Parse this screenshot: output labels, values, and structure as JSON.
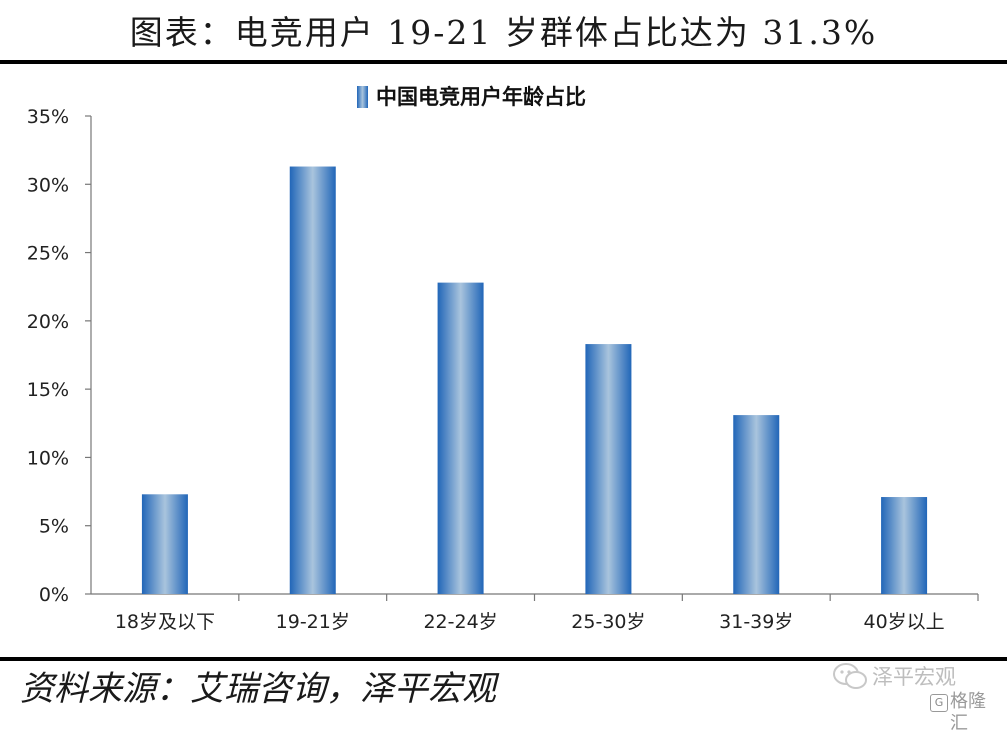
{
  "header": {
    "title": "图表：电竞用户 19-21 岁群体占比达为 31.3%"
  },
  "footer": {
    "source": "资料来源：艾瑞咨询，泽平宏观"
  },
  "watermark": {
    "main": "泽平宏观",
    "badge": "G",
    "sub": "格隆汇"
  },
  "colors": {
    "bar_edge": "#2166b8",
    "bar_center": "#a9c4dd",
    "axis": "#777777",
    "rule": "#000000"
  },
  "chart_data": {
    "type": "bar",
    "categories": [
      "18岁及以下",
      "19-21岁",
      "22-24岁",
      "25-30岁",
      "31-39岁",
      "40岁以上"
    ],
    "series": [
      {
        "name": "中国电竞用户年龄占比",
        "values": [
          7.3,
          31.3,
          22.8,
          18.3,
          13.1,
          7.1
        ]
      }
    ],
    "yticks": [
      "0%",
      "5%",
      "10%",
      "15%",
      "20%",
      "25%",
      "30%",
      "35%"
    ],
    "ylim": [
      0,
      35
    ],
    "ystep": 5,
    "legend_position": "top-center",
    "grid": false
  }
}
